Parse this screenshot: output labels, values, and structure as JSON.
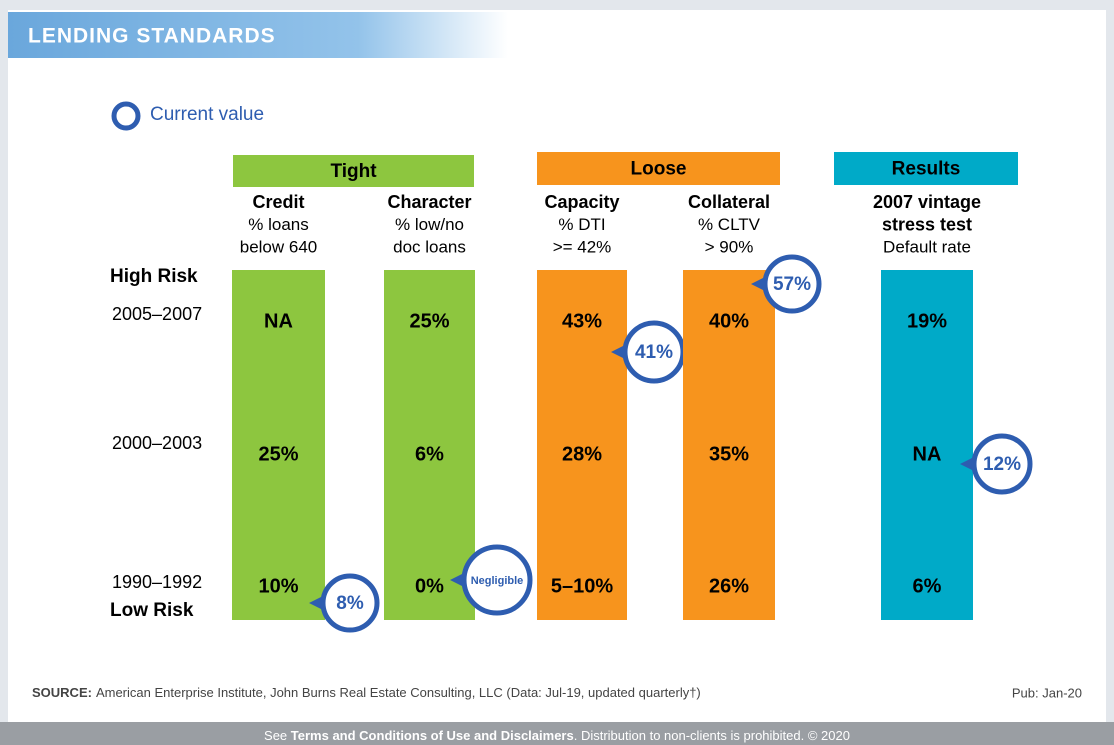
{
  "header": {
    "title": "LENDING STANDARDS"
  },
  "legend": {
    "label": "Current value"
  },
  "groups": [
    "Tight",
    "Loose",
    "Results"
  ],
  "rows": {
    "high": "High Risk",
    "low": "Low Risk",
    "periods": [
      "2005–2007",
      "2000–2003",
      "1990–1992"
    ]
  },
  "columns": [
    {
      "title": [
        "Credit"
      ],
      "sub": [
        "% loans",
        "below 640"
      ],
      "cells": [
        "NA",
        "25%",
        "10%"
      ],
      "current": "8%"
    },
    {
      "title": [
        "Character"
      ],
      "sub": [
        "% low/no",
        "doc loans"
      ],
      "cells": [
        "25%",
        "6%",
        "0%"
      ],
      "current": "Negligible"
    },
    {
      "title": [
        "Capacity"
      ],
      "sub": [
        "% DTI",
        ">= 42%"
      ],
      "cells": [
        "43%",
        "28%",
        "5–10%"
      ],
      "current": "41%"
    },
    {
      "title": [
        "Collateral"
      ],
      "sub": [
        "% CLTV",
        "> 90%"
      ],
      "cells": [
        "40%",
        "35%",
        "26%"
      ],
      "current": "57%"
    },
    {
      "title": [
        "2007 vintage",
        "stress test"
      ],
      "sub": [
        "Default rate"
      ],
      "cells": [
        "19%",
        "NA",
        "6%"
      ],
      "current": "12%"
    }
  ],
  "source": {
    "label": "SOURCE:",
    "text": "American Enterprise Institute, John Burns Real Estate Consulting, LLC (Data: Jul-19, updated quarterly†)"
  },
  "pub": "Pub: Jan-20",
  "footer": {
    "before": "See ",
    "link": "Terms and Conditions of Use and Disclaimers",
    "after": ". Distribution to non-clients is prohibited. © 2020"
  }
}
